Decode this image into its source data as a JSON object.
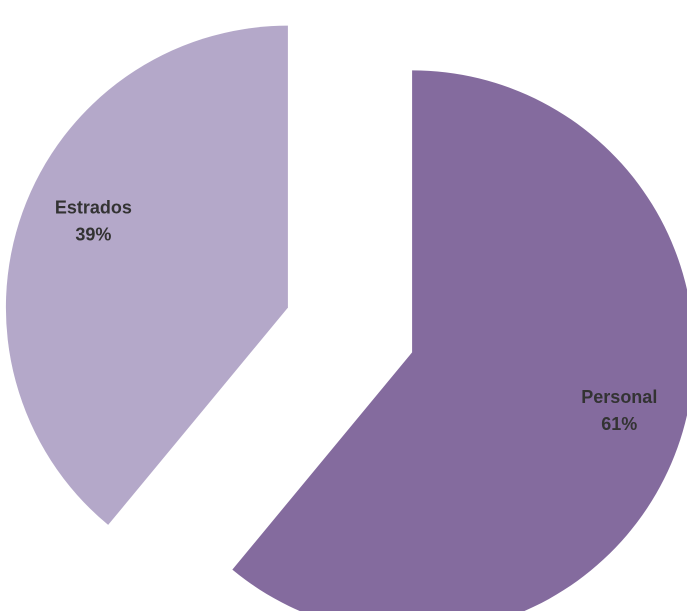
{
  "chart_data": {
    "type": "pie",
    "title": "",
    "categories": [
      "Personal",
      "Estrados"
    ],
    "values": [
      61,
      39
    ],
    "labels": [
      {
        "name": "Personal",
        "percent": "61%"
      },
      {
        "name": "Estrados",
        "percent": "39%"
      }
    ],
    "colors": [
      "#846b9e",
      "#b4a8c9"
    ],
    "exploded": true,
    "legend": "none",
    "start_angle_deg": 0,
    "direction": "clockwise"
  }
}
